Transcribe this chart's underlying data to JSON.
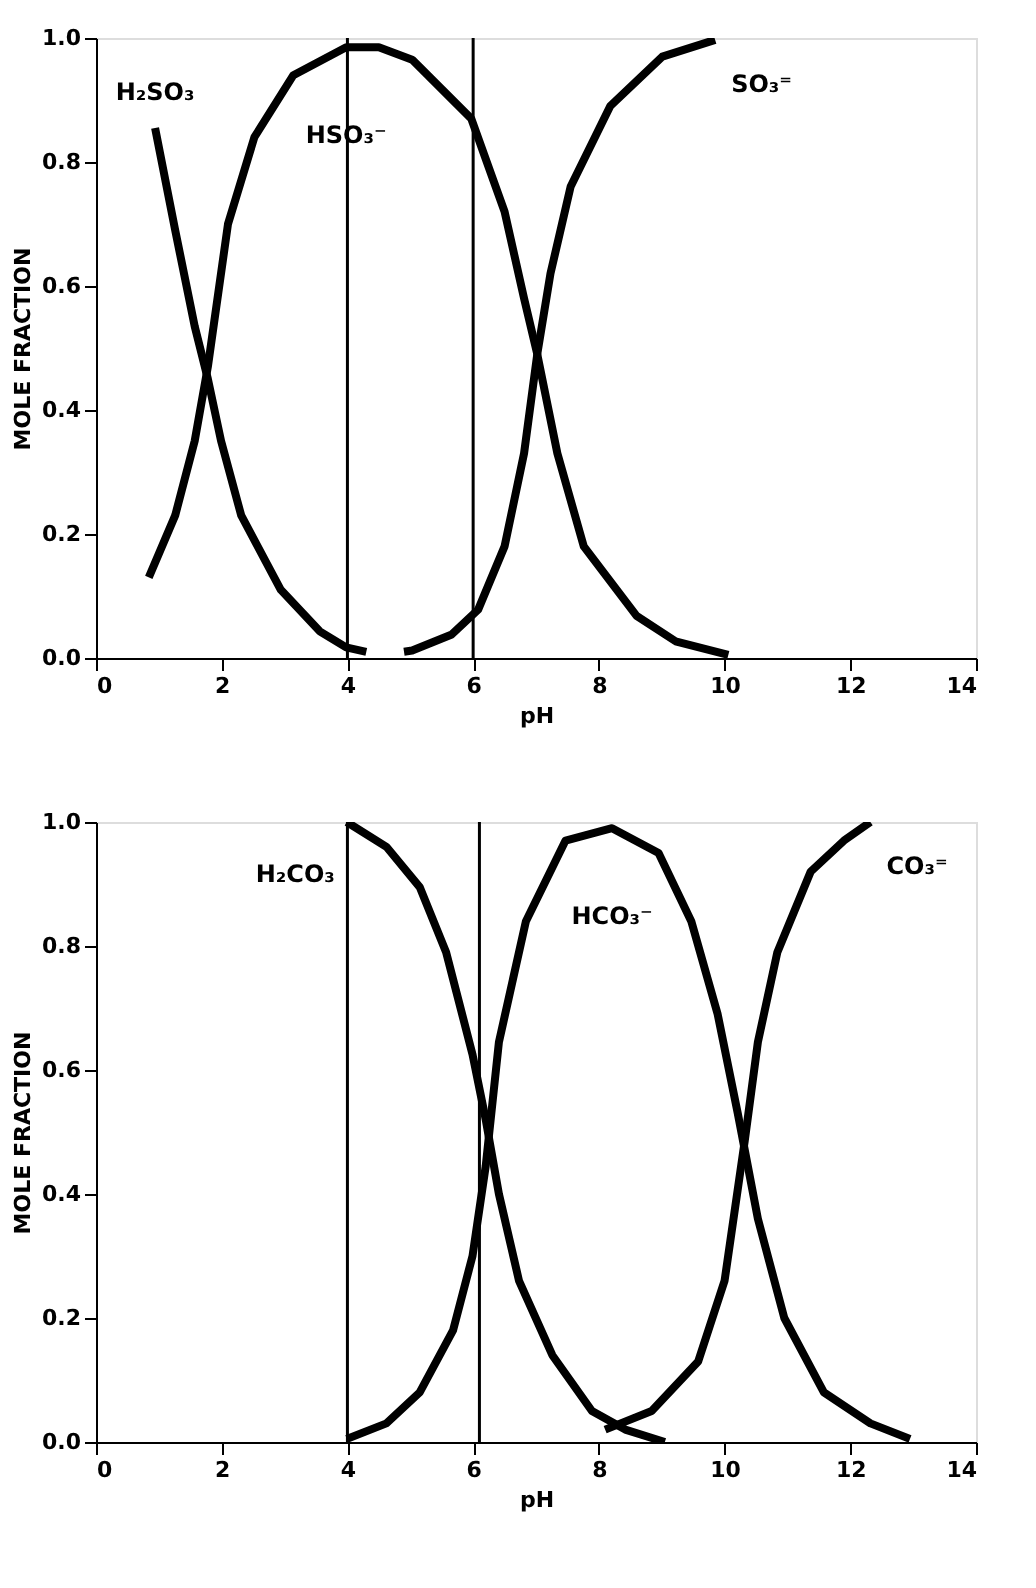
{
  "chart_data": [
    {
      "type": "line",
      "xlabel": "pH",
      "ylabel": "MOLE FRACTION",
      "xlim": [
        0,
        14
      ],
      "ylim": [
        0,
        1
      ],
      "xticks": [
        0,
        2,
        4,
        6,
        8,
        10,
        12,
        14
      ],
      "yticks": [
        {
          "value": 0,
          "label": "0.0"
        },
        {
          "value": 0.2,
          "label": "0.2"
        },
        {
          "value": 0.4,
          "label": "0.4"
        },
        {
          "value": 0.6,
          "label": "0.6"
        },
        {
          "value": 0.8,
          "label": "0.8"
        },
        {
          "value": 1,
          "label": "1.0"
        }
      ],
      "grid": false,
      "marker": "none",
      "line_style": "solid",
      "series": [
        {
          "name": "H₂SO₃",
          "color": "#000000",
          "x": [
            0.94,
            1.26,
            1.57,
            1.78,
            1.99,
            2.31,
            2.94,
            3.56,
            3.98,
            4.3
          ],
          "values": [
            0.855,
            0.69,
            0.535,
            0.45,
            0.35,
            0.23,
            0.11,
            0.043,
            0.017,
            0.01
          ]
        },
        {
          "name": "HSO₃⁻",
          "color": "#000000",
          "x": [
            0.84,
            1.26,
            1.57,
            1.78,
            2.1,
            2.52,
            3.14,
            3.98,
            4.5,
            5.03,
            5.97,
            6.5,
            6.81,
            7.02,
            7.34,
            7.76,
            8.6,
            9.22,
            10.06
          ],
          "values": [
            0.13,
            0.23,
            0.35,
            0.47,
            0.7,
            0.84,
            0.94,
            0.985,
            0.985,
            0.965,
            0.87,
            0.72,
            0.58,
            0.49,
            0.33,
            0.18,
            0.068,
            0.027,
            0.005
          ]
        },
        {
          "name": "SO₃⁼",
          "color": "#000000",
          "x": [
            4.9,
            5.03,
            5.66,
            6.08,
            6.5,
            6.81,
            7.02,
            7.23,
            7.55,
            8.18,
            9.01,
            9.85
          ],
          "values": [
            0.01,
            0.012,
            0.038,
            0.078,
            0.18,
            0.33,
            0.49,
            0.62,
            0.76,
            0.89,
            0.97,
            0.997
          ]
        }
      ],
      "ref_lines": [
        {
          "axis": "x",
          "value": 4,
          "color": "#000000"
        },
        {
          "axis": "x",
          "value": 6,
          "color": "#000000"
        }
      ]
    },
    {
      "type": "line",
      "xlabel": "pH",
      "ylabel": "MOLE FRACTION",
      "xlim": [
        0,
        14
      ],
      "ylim": [
        0,
        1
      ],
      "xticks": [
        0,
        2,
        4,
        6,
        8,
        10,
        12,
        14
      ],
      "yticks": [
        {
          "value": 0,
          "label": "0.0"
        },
        {
          "value": 0.2,
          "label": "0.2"
        },
        {
          "value": 0.4,
          "label": "0.4"
        },
        {
          "value": 0.6,
          "label": "0.6"
        },
        {
          "value": 0.8,
          "label": "0.8"
        },
        {
          "value": 1,
          "label": "1.0"
        }
      ],
      "grid": false,
      "marker": "none",
      "line_style": "solid",
      "series": [
        {
          "name": "H₂CO₃",
          "color": "#000000",
          "x": [
            3.99,
            4.62,
            5.15,
            5.57,
            5.99,
            6.2,
            6.41,
            6.73,
            7.26,
            7.89,
            8.42,
            9.05
          ],
          "values": [
            1.0,
            0.96,
            0.895,
            0.79,
            0.625,
            0.52,
            0.4,
            0.26,
            0.14,
            0.05,
            0.02,
            0.0
          ]
        },
        {
          "name": "HCO₃⁻",
          "color": "#000000",
          "x": [
            3.99,
            4.62,
            5.15,
            5.68,
            5.99,
            6.2,
            6.41,
            6.84,
            7.47,
            8.21,
            8.95,
            9.47,
            9.89,
            10.21,
            10.53,
            10.95,
            11.58,
            12.32,
            12.95
          ],
          "values": [
            0.005,
            0.03,
            0.08,
            0.18,
            0.3,
            0.445,
            0.645,
            0.84,
            0.97,
            0.99,
            0.95,
            0.84,
            0.69,
            0.53,
            0.36,
            0.2,
            0.08,
            0.03,
            0.005
          ]
        },
        {
          "name": "CO₃⁼",
          "color": "#000000",
          "x": [
            8.1,
            8.84,
            9.58,
            10.0,
            10.32,
            10.53,
            10.84,
            11.37,
            11.9,
            12.32
          ],
          "values": [
            0.02,
            0.05,
            0.13,
            0.26,
            0.485,
            0.645,
            0.79,
            0.92,
            0.97,
            1.0
          ]
        }
      ],
      "ref_lines": [
        {
          "axis": "x",
          "value": 4,
          "color": "#000000"
        },
        {
          "axis": "x",
          "value": 6.1,
          "color": "#000000"
        }
      ]
    }
  ]
}
